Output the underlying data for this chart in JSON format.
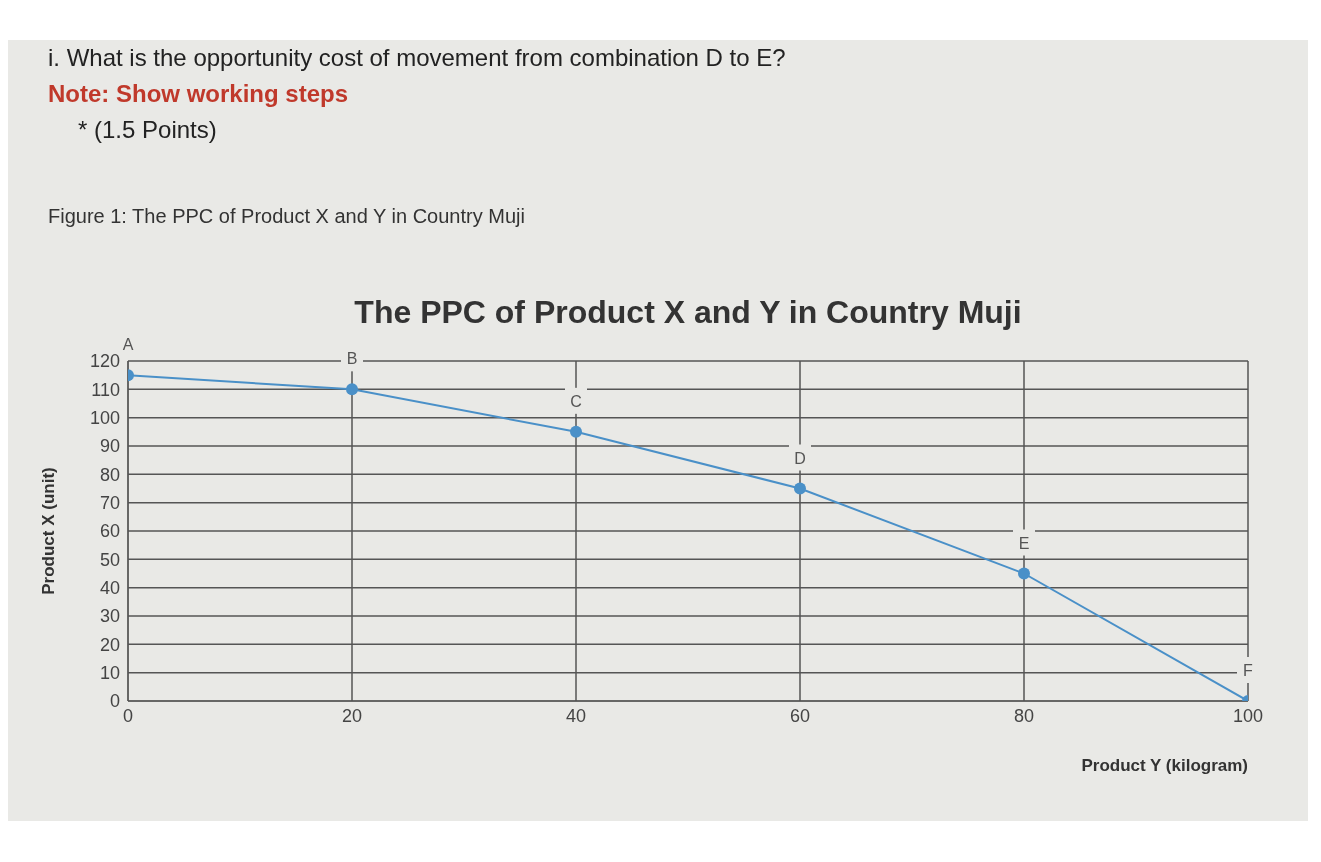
{
  "chart_data": {
    "type": "line",
    "title": "The PPC of Product X and Y in Country Muji",
    "xlabel": "Product Y (kilogram)",
    "ylabel": "Product X (unit)",
    "annotations": [
      "i. What is the opportunity cost of movement from combination D to E?",
      "Note: Show working steps",
      "* (1.5 Points)",
      "Figure 1: The PPC of Product X and Y in Country Muji",
      {
        "text": "A",
        "x": 0,
        "y": 115
      },
      {
        "text": "B",
        "x": 20,
        "y": 110
      },
      {
        "text": "C",
        "x": 40,
        "y": 95
      },
      {
        "text": "D",
        "x": 60,
        "y": 75
      },
      {
        "text": "E",
        "x": 80,
        "y": 45
      },
      {
        "text": "F",
        "x": 100,
        "y": 0
      }
    ],
    "x": [
      0,
      20,
      40,
      60,
      80,
      100
    ],
    "series": [
      {
        "color": "#4a90c8",
        "values": [
          115,
          110,
          95,
          75,
          45,
          0
        ]
      }
    ],
    "xlim": [
      0,
      100
    ],
    "xticks": [
      0,
      20,
      40,
      60,
      80,
      100
    ],
    "ylim": [
      0,
      120
    ],
    "yticks": [
      0,
      10,
      20,
      30,
      40,
      50,
      60,
      70,
      80,
      90,
      100,
      110,
      120
    ],
    "grid": true,
    "marker": "circle",
    "line_style": "solid",
    "legend": false
  }
}
